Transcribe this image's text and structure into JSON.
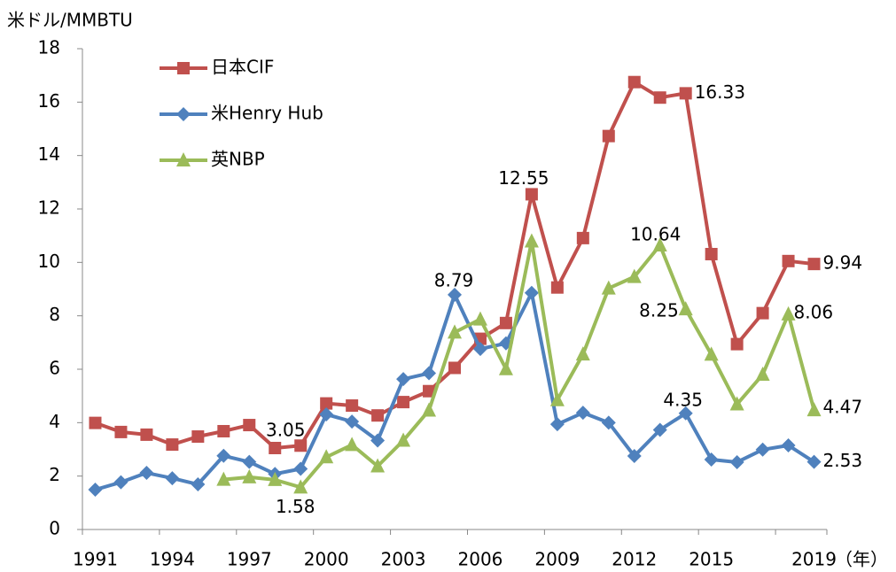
{
  "chart_data": {
    "type": "line",
    "y_label": "米ドル/MMBTU",
    "x_label": "（年）",
    "categories": [
      "1991",
      null,
      null,
      "1994",
      null,
      null,
      "1997",
      null,
      null,
      "2000",
      null,
      null,
      "2003",
      null,
      null,
      "2006",
      null,
      null,
      "2009",
      null,
      null,
      "2012",
      null,
      null,
      "2015",
      null,
      null,
      null,
      "2019"
    ],
    "ylim": [
      0,
      18
    ],
    "yticks": [
      0,
      2,
      4,
      6,
      8,
      10,
      12,
      14,
      16,
      18
    ],
    "legend": "upper left",
    "series": [
      {
        "name": "日本CIF",
        "color": "#c0504d",
        "marker": "square",
        "values": [
          3.99,
          3.65,
          3.55,
          3.18,
          3.48,
          3.68,
          3.91,
          3.05,
          3.14,
          4.72,
          4.64,
          4.27,
          4.77,
          5.18,
          6.05,
          7.14,
          7.73,
          12.55,
          9.06,
          10.91,
          14.73,
          16.75,
          16.17,
          16.33,
          10.31,
          6.94,
          8.1,
          10.05,
          9.94
        ]
      },
      {
        "name": "米Henry Hub",
        "color": "#4f81bd",
        "marker": "diamond",
        "values": [
          1.49,
          1.77,
          2.12,
          1.92,
          1.69,
          2.76,
          2.53,
          2.08,
          2.27,
          4.31,
          4.04,
          3.33,
          5.63,
          5.85,
          8.79,
          6.76,
          6.97,
          8.86,
          3.94,
          4.37,
          4.0,
          2.75,
          3.73,
          4.35,
          2.62,
          2.52,
          2.99,
          3.15,
          2.53
        ]
      },
      {
        "name": "英NBP",
        "color": "#9bbb59",
        "marker": "triangle",
        "values": [
          null,
          null,
          null,
          null,
          null,
          1.87,
          1.96,
          1.86,
          1.58,
          2.71,
          3.17,
          2.37,
          3.33,
          4.46,
          7.38,
          7.87,
          6.01,
          10.79,
          4.85,
          6.56,
          9.03,
          9.46,
          10.64,
          8.25,
          6.55,
          4.69,
          5.8,
          8.06,
          4.47
        ]
      }
    ]
  }
}
